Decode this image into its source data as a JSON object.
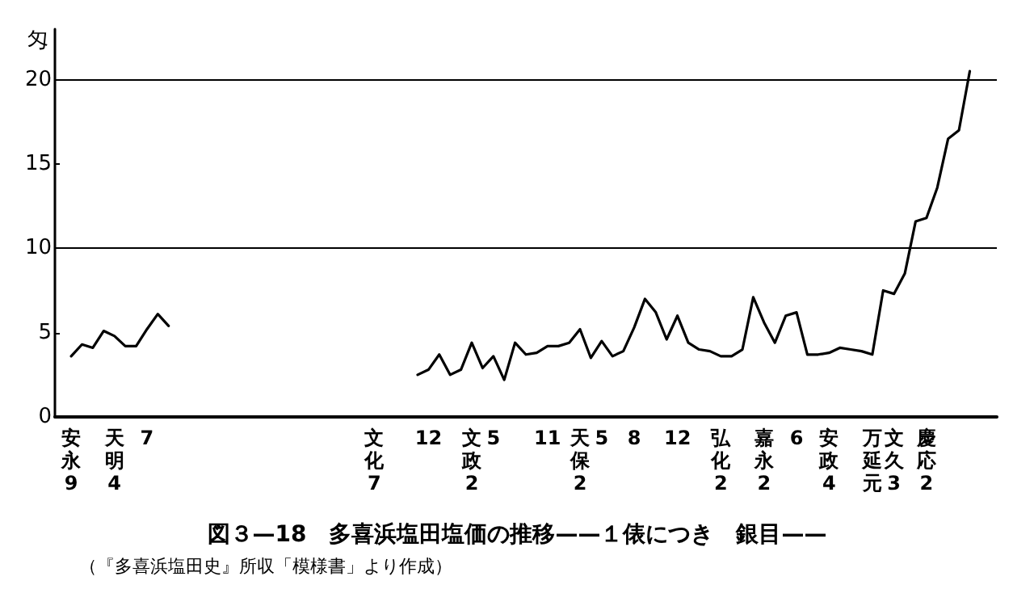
{
  "chart_data": {
    "type": "line",
    "title": "図３—18　多喜浜塩田塩価の推移——１俵につき　銀目——",
    "subtitle": "（『多喜浜塩田史』所収「模様書」より作成）",
    "ylabel": "匁",
    "categories": [
      null,
      "安永9",
      null,
      null,
      null,
      "天明4",
      null,
      null,
      "7",
      null,
      null,
      null,
      null,
      null,
      null,
      null,
      null,
      null,
      null,
      null,
      null,
      null,
      null,
      null,
      null,
      null,
      null,
      null,
      null,
      "文化7",
      null,
      null,
      null,
      null,
      "12",
      null,
      null,
      null,
      "文政2",
      null,
      "5",
      null,
      null,
      null,
      null,
      "11",
      null,
      null,
      "天保2",
      null,
      "5",
      null,
      null,
      "8",
      null,
      null,
      null,
      "12",
      null,
      null,
      null,
      "弘化2",
      null,
      null,
      null,
      "嘉永2",
      null,
      null,
      "6",
      null,
      null,
      "安政4",
      null,
      null,
      null,
      "万延元",
      null,
      "文久3",
      null,
      null,
      "慶応2",
      null,
      null,
      null,
      null,
      null,
      null
    ],
    "ylim": [
      0,
      23
    ],
    "yticks": [
      0,
      5,
      10,
      15,
      20
    ],
    "grid": false,
    "marker": "none",
    "line_style": "solid",
    "ref_lines": [
      {
        "axis": "y",
        "value": 10,
        "color": "#000000"
      },
      {
        "axis": "y",
        "value": 20,
        "color": "#000000"
      }
    ],
    "series": [
      {
        "color": "#000000",
        "values": [
          null,
          3.6,
          4.3,
          4.1,
          5.1,
          4.8,
          4.2,
          4.2,
          5.2,
          6.1,
          5.4,
          null,
          null,
          null,
          null,
          null,
          null,
          null,
          null,
          null,
          null,
          null,
          null,
          null,
          null,
          null,
          null,
          null,
          null,
          null,
          null,
          null,
          null,
          2.5,
          2.8,
          3.7,
          2.5,
          2.8,
          4.4,
          2.9,
          3.6,
          2.2,
          4.4,
          3.7,
          3.8,
          4.2,
          4.2,
          4.4,
          5.2,
          3.5,
          4.5,
          3.6,
          3.9,
          5.3,
          7.0,
          6.2,
          4.6,
          6.0,
          4.4,
          4.0,
          3.9,
          3.6,
          3.6,
          4.0,
          7.1,
          5.6,
          4.4,
          6.0,
          6.2,
          3.7,
          3.7,
          3.8,
          4.1,
          4.0,
          3.9,
          3.7,
          7.5,
          7.3,
          8.5,
          11.6,
          11.8,
          13.6,
          16.5,
          17.0,
          20.5,
          null,
          null
        ]
      }
    ]
  }
}
